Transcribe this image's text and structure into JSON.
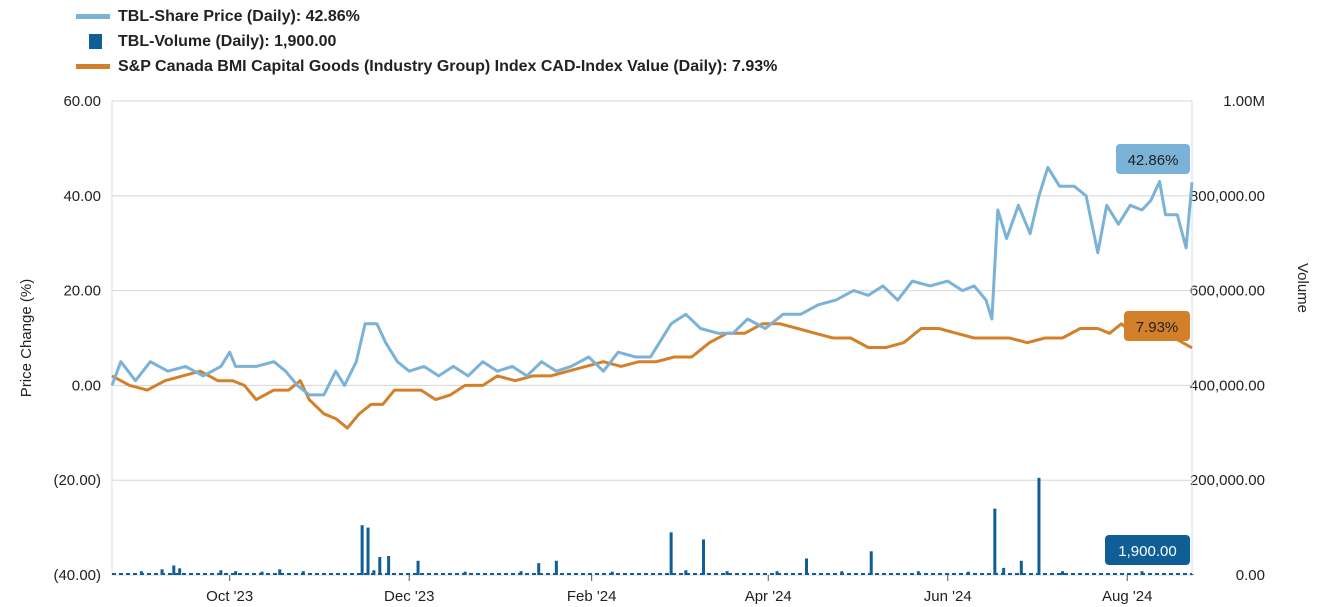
{
  "legend": [
    {
      "label": "TBL-Share Price (Daily): 42.86%",
      "color": "#7bb2d8",
      "kind": "line"
    },
    {
      "label": "TBL-Volume (Daily): 1,900.00",
      "color": "#0f5e95",
      "kind": "box"
    },
    {
      "label": "S&P Canada BMI Capital Goods (Industry Group) Index CAD-Index Value (Daily): 7.93%",
      "color": "#d4802a",
      "kind": "line"
    }
  ],
  "chart_data": {
    "type": "line",
    "title": "",
    "ylabel": "Price Change (%)",
    "y2label": "Volume",
    "ylim": [
      -40,
      60
    ],
    "y2lim": [
      0,
      1000000
    ],
    "y_ticks": [
      "60.00",
      "40.00",
      "20.00",
      "0.00",
      "(20.00)",
      "(40.00)"
    ],
    "y2_ticks": [
      "1.00M",
      "800,000.00",
      "600,000.00",
      "400,000.00",
      "200,000.00",
      "0.00"
    ],
    "x_range": [
      "2023-08-22",
      "2024-08-23"
    ],
    "x_ticks": [
      {
        "date": "2023-10-01",
        "label": "Oct '23"
      },
      {
        "date": "2023-12-01",
        "label": "Dec '23"
      },
      {
        "date": "2024-02-01",
        "label": "Feb '24"
      },
      {
        "date": "2024-04-01",
        "label": "Apr '24"
      },
      {
        "date": "2024-06-01",
        "label": "Jun '24"
      },
      {
        "date": "2024-08-01",
        "label": "Aug '24"
      }
    ],
    "grid": "horizontal",
    "series": [
      {
        "name": "TBL-Share Price (Daily)",
        "axis": "left",
        "color": "#7bb2d8",
        "points": [
          [
            "2023-08-22",
            0
          ],
          [
            "2023-08-25",
            5
          ],
          [
            "2023-08-30",
            1
          ],
          [
            "2023-09-04",
            5
          ],
          [
            "2023-09-10",
            3
          ],
          [
            "2023-09-16",
            4
          ],
          [
            "2023-09-22",
            2
          ],
          [
            "2023-09-28",
            4
          ],
          [
            "2023-10-01",
            7
          ],
          [
            "2023-10-03",
            4
          ],
          [
            "2023-10-10",
            4
          ],
          [
            "2023-10-16",
            5
          ],
          [
            "2023-10-20",
            3
          ],
          [
            "2023-10-24",
            0
          ],
          [
            "2023-10-28",
            -2
          ],
          [
            "2023-11-02",
            -2
          ],
          [
            "2023-11-06",
            3
          ],
          [
            "2023-11-09",
            0
          ],
          [
            "2023-11-13",
            5
          ],
          [
            "2023-11-16",
            13
          ],
          [
            "2023-11-20",
            13
          ],
          [
            "2023-11-23",
            9
          ],
          [
            "2023-11-27",
            5
          ],
          [
            "2023-12-01",
            3
          ],
          [
            "2023-12-06",
            4
          ],
          [
            "2023-12-11",
            2
          ],
          [
            "2023-12-16",
            4
          ],
          [
            "2023-12-21",
            2
          ],
          [
            "2023-12-26",
            5
          ],
          [
            "2023-12-31",
            3
          ],
          [
            "2024-01-05",
            4
          ],
          [
            "2024-01-10",
            2
          ],
          [
            "2024-01-15",
            5
          ],
          [
            "2024-01-20",
            3
          ],
          [
            "2024-01-25",
            4
          ],
          [
            "2024-01-31",
            6
          ],
          [
            "2024-02-05",
            3
          ],
          [
            "2024-02-10",
            7
          ],
          [
            "2024-02-16",
            6
          ],
          [
            "2024-02-21",
            6
          ],
          [
            "2024-02-28",
            13
          ],
          [
            "2024-03-04",
            15
          ],
          [
            "2024-03-09",
            12
          ],
          [
            "2024-03-15",
            11
          ],
          [
            "2024-03-20",
            11
          ],
          [
            "2024-03-25",
            14
          ],
          [
            "2024-03-31",
            12
          ],
          [
            "2024-04-06",
            15
          ],
          [
            "2024-04-12",
            15
          ],
          [
            "2024-04-18",
            17
          ],
          [
            "2024-04-24",
            18
          ],
          [
            "2024-04-30",
            20
          ],
          [
            "2024-05-05",
            19
          ],
          [
            "2024-05-10",
            21
          ],
          [
            "2024-05-15",
            18
          ],
          [
            "2024-05-20",
            22
          ],
          [
            "2024-05-26",
            21
          ],
          [
            "2024-06-01",
            22
          ],
          [
            "2024-06-06",
            20
          ],
          [
            "2024-06-10",
            21
          ],
          [
            "2024-06-14",
            18
          ],
          [
            "2024-06-16",
            14
          ],
          [
            "2024-06-18",
            37
          ],
          [
            "2024-06-21",
            31
          ],
          [
            "2024-06-25",
            38
          ],
          [
            "2024-06-29",
            32
          ],
          [
            "2024-07-02",
            40
          ],
          [
            "2024-07-05",
            46
          ],
          [
            "2024-07-09",
            42
          ],
          [
            "2024-07-14",
            42
          ],
          [
            "2024-07-18",
            40
          ],
          [
            "2024-07-22",
            28
          ],
          [
            "2024-07-25",
            38
          ],
          [
            "2024-07-29",
            34
          ],
          [
            "2024-08-02",
            38
          ],
          [
            "2024-08-06",
            37
          ],
          [
            "2024-08-09",
            39
          ],
          [
            "2024-08-12",
            43
          ],
          [
            "2024-08-14",
            36
          ],
          [
            "2024-08-18",
            36
          ],
          [
            "2024-08-21",
            29
          ],
          [
            "2024-08-23",
            42.86
          ]
        ]
      },
      {
        "name": "S&P Canada BMI Capital Goods (Industry Group) Index CAD-Index Value (Daily)",
        "axis": "left",
        "color": "#d4802a",
        "points": [
          [
            "2023-08-22",
            2
          ],
          [
            "2023-08-28",
            0
          ],
          [
            "2023-09-03",
            -1
          ],
          [
            "2023-09-09",
            1
          ],
          [
            "2023-09-15",
            2
          ],
          [
            "2023-09-21",
            3
          ],
          [
            "2023-09-27",
            1
          ],
          [
            "2023-10-02",
            1
          ],
          [
            "2023-10-06",
            0
          ],
          [
            "2023-10-10",
            -3
          ],
          [
            "2023-10-16",
            -1
          ],
          [
            "2023-10-21",
            -1
          ],
          [
            "2023-10-25",
            1
          ],
          [
            "2023-10-28",
            -3
          ],
          [
            "2023-11-02",
            -6
          ],
          [
            "2023-11-06",
            -7
          ],
          [
            "2023-11-10",
            -9
          ],
          [
            "2023-11-14",
            -6
          ],
          [
            "2023-11-18",
            -4
          ],
          [
            "2023-11-22",
            -4
          ],
          [
            "2023-11-26",
            -1
          ],
          [
            "2023-12-01",
            -1
          ],
          [
            "2023-12-05",
            -1
          ],
          [
            "2023-12-10",
            -3
          ],
          [
            "2023-12-15",
            -2
          ],
          [
            "2023-12-20",
            0
          ],
          [
            "2023-12-26",
            0
          ],
          [
            "2023-12-31",
            2
          ],
          [
            "2024-01-06",
            1
          ],
          [
            "2024-01-12",
            2
          ],
          [
            "2024-01-18",
            2
          ],
          [
            "2024-01-24",
            3
          ],
          [
            "2024-01-30",
            4
          ],
          [
            "2024-02-05",
            5
          ],
          [
            "2024-02-11",
            4
          ],
          [
            "2024-02-17",
            5
          ],
          [
            "2024-02-23",
            5
          ],
          [
            "2024-02-29",
            6
          ],
          [
            "2024-03-06",
            6
          ],
          [
            "2024-03-12",
            9
          ],
          [
            "2024-03-18",
            11
          ],
          [
            "2024-03-24",
            11
          ],
          [
            "2024-03-30",
            13
          ],
          [
            "2024-04-05",
            13
          ],
          [
            "2024-04-11",
            12
          ],
          [
            "2024-04-17",
            11
          ],
          [
            "2024-04-23",
            10
          ],
          [
            "2024-04-29",
            10
          ],
          [
            "2024-05-05",
            8
          ],
          [
            "2024-05-11",
            8
          ],
          [
            "2024-05-17",
            9
          ],
          [
            "2024-05-23",
            12
          ],
          [
            "2024-05-29",
            12
          ],
          [
            "2024-06-04",
            11
          ],
          [
            "2024-06-10",
            10
          ],
          [
            "2024-06-16",
            10
          ],
          [
            "2024-06-22",
            10
          ],
          [
            "2024-06-28",
            9
          ],
          [
            "2024-07-04",
            10
          ],
          [
            "2024-07-10",
            10
          ],
          [
            "2024-07-16",
            12
          ],
          [
            "2024-07-22",
            12
          ],
          [
            "2024-07-26",
            11
          ],
          [
            "2024-07-30",
            13
          ],
          [
            "2024-08-03",
            11
          ],
          [
            "2024-08-07",
            12
          ],
          [
            "2024-08-12",
            14
          ],
          [
            "2024-08-17",
            10
          ],
          [
            "2024-08-23",
            7.93
          ]
        ]
      },
      {
        "name": "TBL-Volume (Daily)",
        "axis": "right",
        "kind": "bar",
        "color": "#0f5e95",
        "baseline": 2000,
        "bars": [
          [
            "2023-09-01",
            8000
          ],
          [
            "2023-09-08",
            12000
          ],
          [
            "2023-09-12",
            20000
          ],
          [
            "2023-09-14",
            14000
          ],
          [
            "2023-09-28",
            10000
          ],
          [
            "2023-10-03",
            8000
          ],
          [
            "2023-10-12",
            7000
          ],
          [
            "2023-10-18",
            12000
          ],
          [
            "2023-10-26",
            8000
          ],
          [
            "2023-11-15",
            105000
          ],
          [
            "2023-11-17",
            100000
          ],
          [
            "2023-11-19",
            10000
          ],
          [
            "2023-11-21",
            38000
          ],
          [
            "2023-11-24",
            40000
          ],
          [
            "2023-12-04",
            30000
          ],
          [
            "2023-12-20",
            7000
          ],
          [
            "2024-01-08",
            8000
          ],
          [
            "2024-01-14",
            25000
          ],
          [
            "2024-01-20",
            30000
          ],
          [
            "2024-02-08",
            7000
          ],
          [
            "2024-02-28",
            90000
          ],
          [
            "2024-03-04",
            10000
          ],
          [
            "2024-03-10",
            75000
          ],
          [
            "2024-03-18",
            8000
          ],
          [
            "2024-04-04",
            8000
          ],
          [
            "2024-04-14",
            35000
          ],
          [
            "2024-04-26",
            8000
          ],
          [
            "2024-05-06",
            50000
          ],
          [
            "2024-05-22",
            8000
          ],
          [
            "2024-06-08",
            7000
          ],
          [
            "2024-06-17",
            140000
          ],
          [
            "2024-06-20",
            15000
          ],
          [
            "2024-06-26",
            30000
          ],
          [
            "2024-07-02",
            205000
          ],
          [
            "2024-07-10",
            8000
          ],
          [
            "2024-08-06",
            8000
          ],
          [
            "2024-08-23",
            1900
          ]
        ]
      }
    ],
    "callouts": [
      {
        "text": "42.86%",
        "series": 0,
        "bg": "#7bb2d8",
        "color": "#222222"
      },
      {
        "text": "7.93%",
        "series": 1,
        "bg": "#d4802a",
        "color": "#222222"
      },
      {
        "text": "1,900.00",
        "series": 2,
        "bg": "#0f5e95",
        "color": "#ffffff"
      }
    ]
  }
}
